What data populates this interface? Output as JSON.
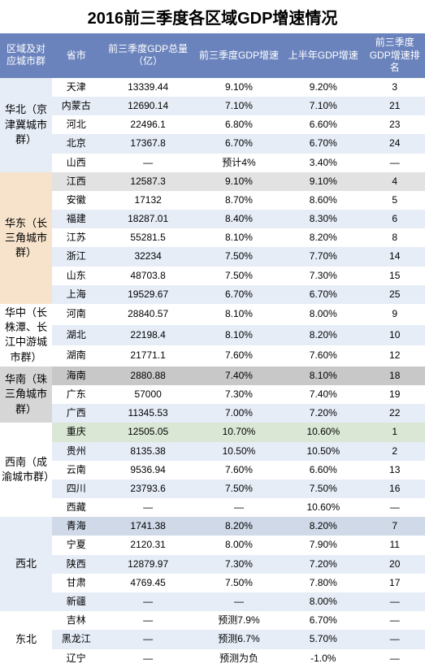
{
  "title": "2016前三季度各区域GDP增速情况",
  "headers": {
    "region": "区域及对应城市群",
    "province": "省市",
    "gdp_total": "前三季度GDP总量（亿）",
    "q3_growth": "前三季度GDP增速",
    "h1_growth": "上半年GDP增速",
    "rank": "前三季度GDP增速排名"
  },
  "regions": [
    {
      "name": "华北（京津冀城市群）",
      "cell_bg": "#e6edf7",
      "rows": [
        {
          "province": "天津",
          "gdp": "13339.44",
          "q3": "9.10%",
          "h1": "9.20%",
          "rank": "3",
          "bg": "#ffffff"
        },
        {
          "province": "内蒙古",
          "gdp": "12690.14",
          "q3": "7.10%",
          "h1": "7.10%",
          "rank": "21",
          "bg": "#e6edf7"
        },
        {
          "province": "河北",
          "gdp": "22496.1",
          "q3": "6.80%",
          "h1": "6.60%",
          "rank": "23",
          "bg": "#ffffff"
        },
        {
          "province": "北京",
          "gdp": "17367.8",
          "q3": "6.70%",
          "h1": "6.70%",
          "rank": "24",
          "bg": "#e6edf7"
        },
        {
          "province": "山西",
          "gdp": "—",
          "q3": "预计4%",
          "h1": "3.40%",
          "rank": "—",
          "bg": "#ffffff"
        }
      ]
    },
    {
      "name": "华东（长三角城市群）",
      "cell_bg": "#f7e3cc",
      "rows": [
        {
          "province": "江西",
          "gdp": "12587.3",
          "q3": "9.10%",
          "h1": "9.10%",
          "rank": "4",
          "bg": "#e2e2e2"
        },
        {
          "province": "安徽",
          "gdp": "17132",
          "q3": "8.70%",
          "h1": "8.60%",
          "rank": "5",
          "bg": "#ffffff"
        },
        {
          "province": "福建",
          "gdp": "18287.01",
          "q3": "8.40%",
          "h1": "8.30%",
          "rank": "6",
          "bg": "#e6edf7"
        },
        {
          "province": "江苏",
          "gdp": "55281.5",
          "q3": "8.10%",
          "h1": "8.20%",
          "rank": "8",
          "bg": "#ffffff"
        },
        {
          "province": "浙江",
          "gdp": "32234",
          "q3": "7.50%",
          "h1": "7.70%",
          "rank": "14",
          "bg": "#e6edf7"
        },
        {
          "province": "山东",
          "gdp": "48703.8",
          "q3": "7.50%",
          "h1": "7.30%",
          "rank": "15",
          "bg": "#ffffff"
        },
        {
          "province": "上海",
          "gdp": "19529.67",
          "q3": "6.70%",
          "h1": "6.70%",
          "rank": "25",
          "bg": "#e6edf7"
        }
      ]
    },
    {
      "name": "华中（长株潭、长江中游城市群）",
      "cell_bg": "#ffffff",
      "rows": [
        {
          "province": "河南",
          "gdp": "28840.57",
          "q3": "8.10%",
          "h1": "8.00%",
          "rank": "9",
          "bg": "#ffffff"
        },
        {
          "province": "湖北",
          "gdp": "22198.4",
          "q3": "8.10%",
          "h1": "8.20%",
          "rank": "10",
          "bg": "#e6edf7"
        },
        {
          "province": "湖南",
          "gdp": "21771.1",
          "q3": "7.60%",
          "h1": "7.60%",
          "rank": "12",
          "bg": "#ffffff"
        }
      ]
    },
    {
      "name": "华南（珠三角城市群）",
      "cell_bg": "#d6d6d6",
      "rows": [
        {
          "province": "海南",
          "gdp": "2880.88",
          "q3": "7.40%",
          "h1": "8.10%",
          "rank": "18",
          "bg": "#c8c8c8"
        },
        {
          "province": "广东",
          "gdp": "57000",
          "q3": "7.30%",
          "h1": "7.40%",
          "rank": "19",
          "bg": "#ffffff"
        },
        {
          "province": "广西",
          "gdp": "11345.53",
          "q3": "7.00%",
          "h1": "7.20%",
          "rank": "22",
          "bg": "#e6edf7"
        }
      ]
    },
    {
      "name": "西南（成渝城市群）",
      "cell_bg": "#ffffff",
      "rows": [
        {
          "province": "重庆",
          "gdp": "12505.05",
          "q3": "10.70%",
          "h1": "10.60%",
          "rank": "1",
          "bg": "#d9e7d4"
        },
        {
          "province": "贵州",
          "gdp": "8135.38",
          "q3": "10.50%",
          "h1": "10.50%",
          "rank": "2",
          "bg": "#e6edf7"
        },
        {
          "province": "云南",
          "gdp": "9536.94",
          "q3": "7.60%",
          "h1": "6.60%",
          "rank": "13",
          "bg": "#ffffff"
        },
        {
          "province": "四川",
          "gdp": "23793.6",
          "q3": "7.50%",
          "h1": "7.50%",
          "rank": "16",
          "bg": "#e6edf7"
        },
        {
          "province": "西藏",
          "gdp": "—",
          "q3": "—",
          "h1": "10.60%",
          "rank": "—",
          "bg": "#ffffff"
        }
      ]
    },
    {
      "name": "西北",
      "cell_bg": "#e6edf7",
      "rows": [
        {
          "province": "青海",
          "gdp": "1741.38",
          "q3": "8.20%",
          "h1": "8.20%",
          "rank": "7",
          "bg": "#cfd9e8"
        },
        {
          "province": "宁夏",
          "gdp": "2120.31",
          "q3": "8.00%",
          "h1": "7.90%",
          "rank": "11",
          "bg": "#ffffff"
        },
        {
          "province": "陕西",
          "gdp": "12879.97",
          "q3": "7.30%",
          "h1": "7.20%",
          "rank": "20",
          "bg": "#e6edf7"
        },
        {
          "province": "甘肃",
          "gdp": "4769.45",
          "q3": "7.50%",
          "h1": "7.80%",
          "rank": "17",
          "bg": "#ffffff"
        },
        {
          "province": "新疆",
          "gdp": "—",
          "q3": "—",
          "h1": "8.00%",
          "rank": "—",
          "bg": "#e6edf7"
        }
      ]
    },
    {
      "name": "东北",
      "cell_bg": "#ffffff",
      "rows": [
        {
          "province": "吉林",
          "gdp": "—",
          "q3": "预测7.9%",
          "h1": "6.70%",
          "rank": "—",
          "bg": "#ffffff"
        },
        {
          "province": "黑龙江",
          "gdp": "—",
          "q3": "预测6.7%",
          "h1": "5.70%",
          "rank": "—",
          "bg": "#e6edf7"
        },
        {
          "province": "辽宁",
          "gdp": "—",
          "q3": "预测为负",
          "h1": "-1.0%",
          "rank": "—",
          "bg": "#ffffff"
        }
      ]
    }
  ]
}
